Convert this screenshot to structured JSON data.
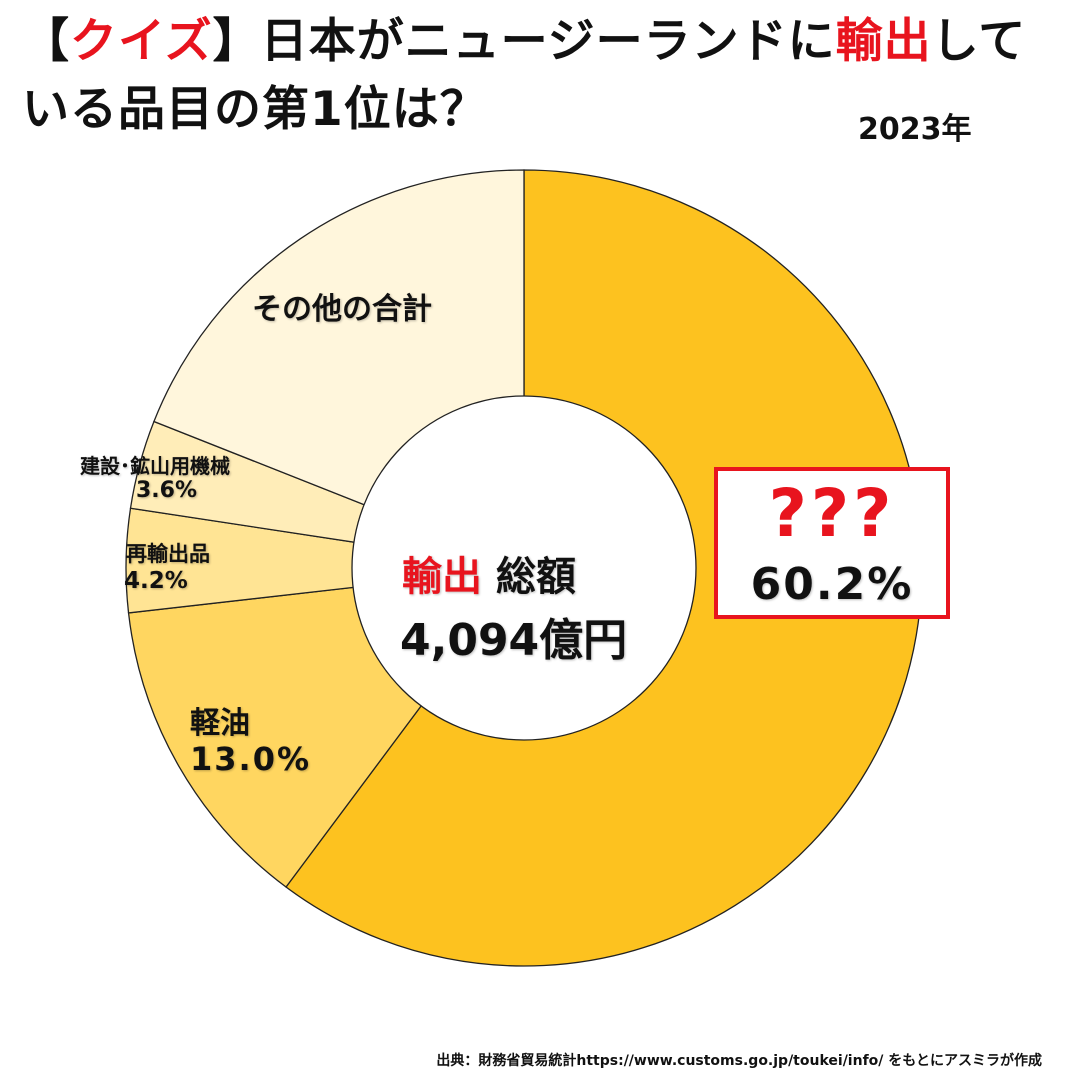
{
  "header": {
    "bracket_open": "【",
    "quiz": "クイズ",
    "bracket_close": "】",
    "title_line1_main": "日本がニュージーランドに",
    "title_line1_highlight": "輸出",
    "title_line1_end": "して",
    "title_line2": "いる品目の第1位は？",
    "year": "2023年"
  },
  "center": {
    "highlight": "輸出",
    "label": "総額",
    "total": "4,094億円"
  },
  "answer": {
    "question_marks": "???",
    "percent": "60.2%"
  },
  "chart_data": {
    "type": "pie",
    "donut": true,
    "categories": [
      "???",
      "軽油",
      "再輸出品",
      "建設・鉱山用機械",
      "その他の合計"
    ],
    "values": [
      60.2,
      13.0,
      4.2,
      3.6,
      19.0
    ],
    "labels": {
      "others": "その他の合計",
      "kensetsu_name": "建設･鉱山用機械",
      "kensetsu_value": "3.6%",
      "saiyushutsu_name": "再輸出品",
      "saiyushutsu_value": "4.2%",
      "keiyu_name": "軽油",
      "keiyu_value": "13.0%"
    },
    "colors": [
      "#fdc21f",
      "#ffd660",
      "#ffe494",
      "#ffedb8",
      "#fff6dc"
    ]
  },
  "source": "出典：財務省貿易統計https://www.customs.go.jp/toukei/info/ をもとにアスミラが作成"
}
